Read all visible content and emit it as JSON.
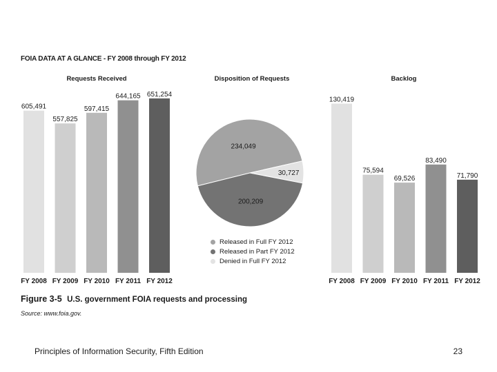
{
  "figure": {
    "title": "FOIA DATA AT A GLANCE - FY 2008 through FY 2012",
    "caption_number": "Figure 3-5",
    "caption_text": "U.S. government FOIA requests and processing",
    "source": "Source: www.foia.gov."
  },
  "footer": {
    "left": "Principles of Information Security, Fifth Edition",
    "page": "23"
  },
  "chart_data": [
    {
      "type": "bar",
      "title": "Requests Received",
      "categories": [
        "FY 2008",
        "FY 2009",
        "FY 2010",
        "FY 2011",
        "FY 2012"
      ],
      "values": [
        605491,
        557825,
        597415,
        644165,
        651254
      ],
      "value_labels": [
        "605,491",
        "557,825",
        "597,415",
        "644,165",
        "651,254"
      ],
      "colors": [
        "#e1e1e1",
        "#cfcfcf",
        "#b9b9b9",
        "#909090",
        "#5e5e5e"
      ],
      "ylim": [
        0,
        710000
      ]
    },
    {
      "type": "pie",
      "title": "Disposition of Requests",
      "labels": [
        "Released in Full FY 2012",
        "Released in Part FY 2012",
        "Denied in Full FY 2012"
      ],
      "values": [
        234049,
        200209,
        30727
      ],
      "value_labels": [
        "234,049",
        "200,209",
        "30,727"
      ],
      "colors": [
        "#a3a3a3",
        "#737373",
        "#e3e3e3"
      ],
      "legend": "bottom"
    },
    {
      "type": "bar",
      "title": "Backlog",
      "categories": [
        "FY 2008",
        "FY 2009",
        "FY 2010",
        "FY 2011",
        "FY 2012"
      ],
      "values": [
        130419,
        75594,
        69526,
        83490,
        71790
      ],
      "value_labels": [
        "130,419",
        "75,594",
        "69,526",
        "83,490",
        "71,790"
      ],
      "colors": [
        "#e1e1e1",
        "#cfcfcf",
        "#b9b9b9",
        "#909090",
        "#5e5e5e"
      ],
      "ylim": [
        0,
        145000
      ]
    }
  ]
}
